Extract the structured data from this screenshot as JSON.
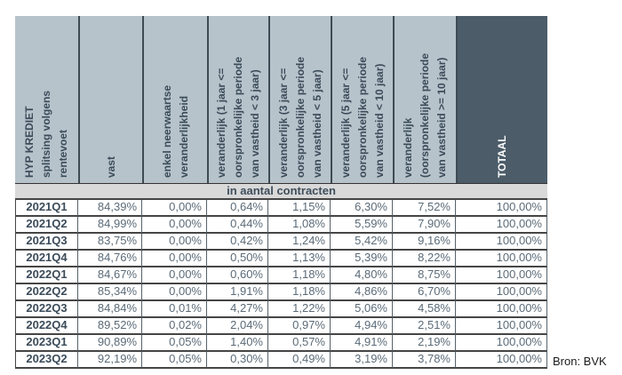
{
  "chart_data": {
    "type": "table",
    "row_header": "HYP KREDIET\nsplitsing volgens\nrentevoet",
    "columns": [
      "vast",
      "enkel neerwaartse\nveranderlijkheid",
      "veranderlijk (1 jaar <=\noorspronkelijke periode\nvan vastheid < 3 jaar)",
      "veranderlijk (3 jaar <=\noorspronkelijke periode\nvan vastheid < 5 jaar)",
      "veranderlijk (5 jaar <=\noorspronkelijke periode\nvan vastheid < 10 jaar)",
      "veranderlijk\n(oorspronkelijke periode\nvan vastheid >= 10 jaar)",
      "TOTAAL"
    ],
    "unit_band": "in aantal contracten",
    "rows": [
      {
        "q": "2021Q1",
        "v": [
          "84,39%",
          "0,00%",
          "0,64%",
          "1,15%",
          "6,30%",
          "7,52%",
          "100,00%"
        ]
      },
      {
        "q": "2021Q2",
        "v": [
          "84,99%",
          "0,00%",
          "0,44%",
          "1,08%",
          "5,59%",
          "7,90%",
          "100,00%"
        ]
      },
      {
        "q": "2021Q3",
        "v": [
          "83,75%",
          "0,00%",
          "0,42%",
          "1,24%",
          "5,42%",
          "9,16%",
          "100,00%"
        ]
      },
      {
        "q": "2021Q4",
        "v": [
          "84,76%",
          "0,00%",
          "0,50%",
          "1,13%",
          "5,39%",
          "8,22%",
          "100,00%"
        ]
      },
      {
        "q": "2022Q1",
        "v": [
          "84,67%",
          "0,00%",
          "0,60%",
          "1,18%",
          "4,80%",
          "8,75%",
          "100,00%"
        ]
      },
      {
        "q": "2022Q2",
        "v": [
          "85,34%",
          "0,00%",
          "1,91%",
          "1,18%",
          "4,86%",
          "6,70%",
          "100,00%"
        ]
      },
      {
        "q": "2022Q3",
        "v": [
          "84,84%",
          "0,01%",
          "4,27%",
          "1,22%",
          "5,06%",
          "4,58%",
          "100,00%"
        ]
      },
      {
        "q": "2022Q4",
        "v": [
          "89,52%",
          "0,02%",
          "2,04%",
          "0,97%",
          "4,94%",
          "2,51%",
          "100,00%"
        ]
      },
      {
        "q": "2023Q1",
        "v": [
          "90,89%",
          "0,05%",
          "1,40%",
          "0,57%",
          "4,91%",
          "2,19%",
          "100,00%"
        ]
      },
      {
        "q": "2023Q2",
        "v": [
          "92,19%",
          "0,05%",
          "0,30%",
          "0,49%",
          "3,19%",
          "3,78%",
          "100,00%"
        ]
      }
    ],
    "source": "Bron: BVK",
    "colors": {
      "header_bg": "#b7c3cb",
      "header_dark_bg": "#4c5c69",
      "band_bg": "#d9d9d9",
      "header_text": "#3b4b59",
      "value_text": "#5b6b78"
    }
  }
}
